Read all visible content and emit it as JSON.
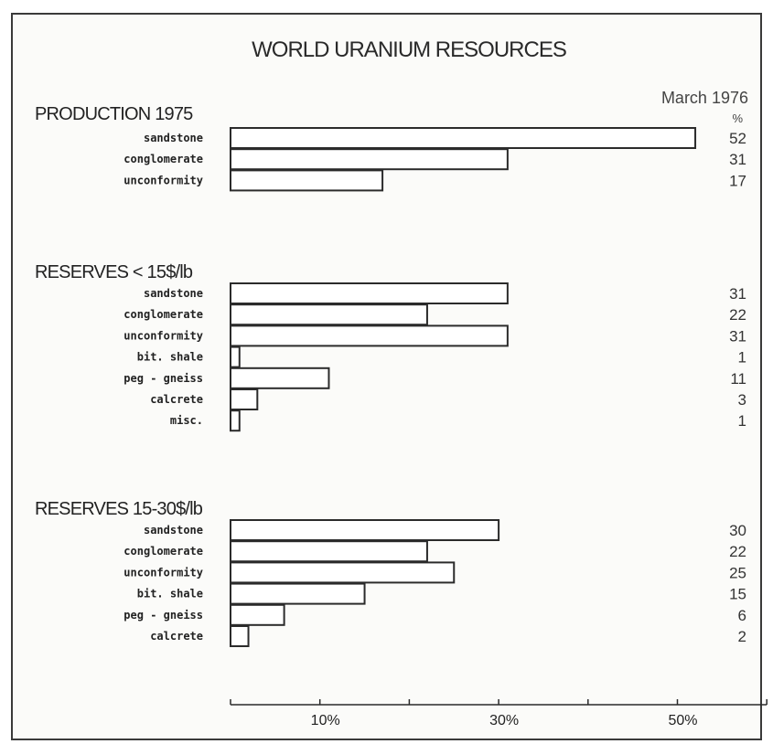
{
  "chart_data": {
    "type": "bar",
    "orientation": "horizontal",
    "title": "WORLD URANIUM RESOURCES",
    "subtitle": "March 1976",
    "value_unit": "%",
    "xlim": [
      0,
      60
    ],
    "x_ticks": [
      0,
      10,
      20,
      30,
      40,
      50,
      60
    ],
    "x_tick_labels": [
      "10%",
      "30%",
      "50%"
    ],
    "x_tick_label_values": [
      10,
      30,
      50
    ],
    "panels": [
      {
        "title": "PRODUCTION 1975",
        "categories": [
          "sandstone",
          "conglomerate",
          "unconformity"
        ],
        "values": [
          52,
          31,
          17
        ]
      },
      {
        "title": "RESERVES < 15$/lb",
        "categories": [
          "sandstone",
          "conglomerate",
          "unconformity",
          "bit. shale",
          "peg - gneiss",
          "calcrete",
          "misc."
        ],
        "values": [
          31,
          22,
          31,
          1,
          11,
          3,
          1
        ]
      },
      {
        "title": "RESERVES 15-30$/lb",
        "categories": [
          "sandstone",
          "conglomerate",
          "unconformity",
          "bit. shale",
          "peg - gneiss",
          "calcrete"
        ],
        "values": [
          30,
          22,
          25,
          15,
          6,
          2
        ]
      }
    ]
  }
}
